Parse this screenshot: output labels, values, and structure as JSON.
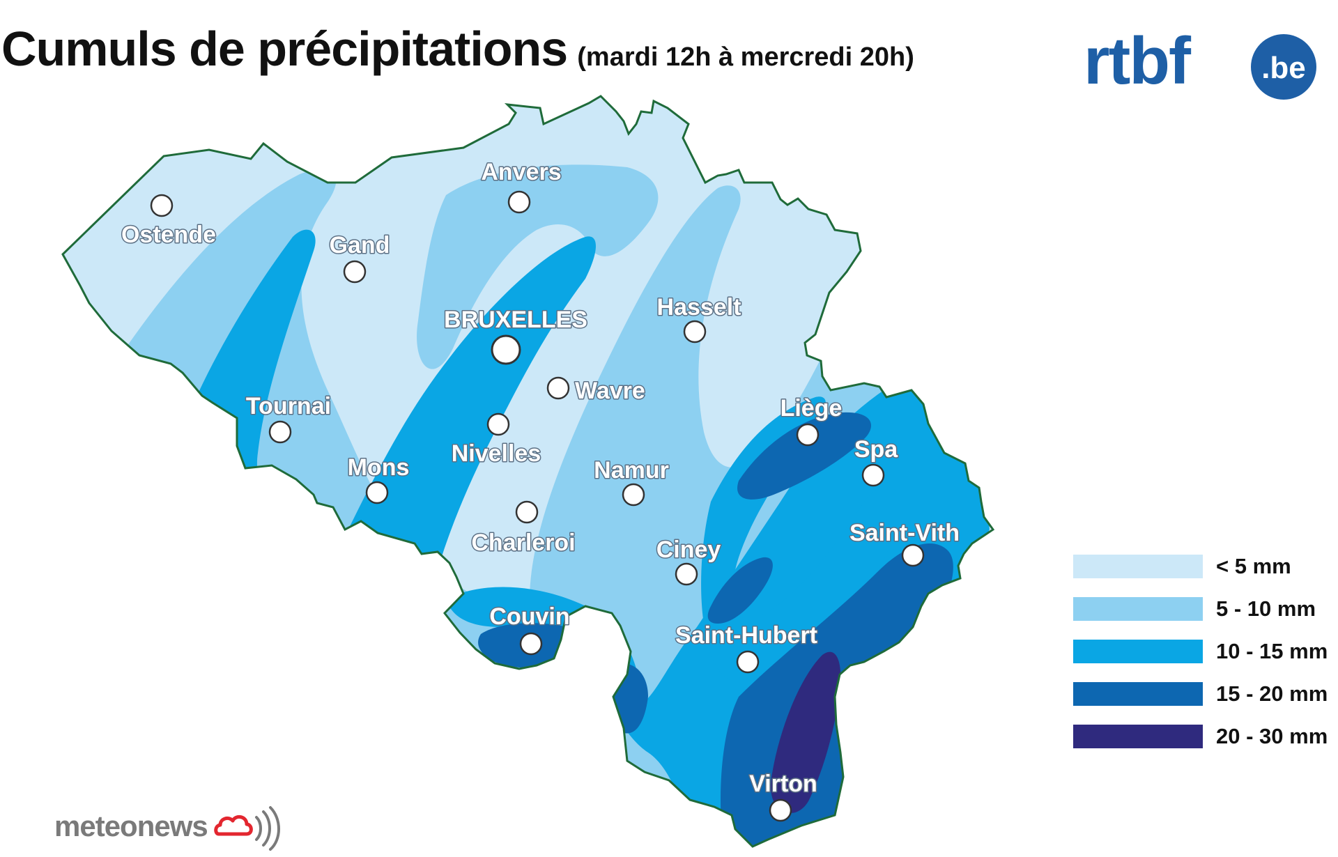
{
  "title": {
    "main": "Cumuls de précipitations",
    "period": "(mardi 12h à mercredi 20h)"
  },
  "brand": {
    "text": "rtbf",
    "badge": ".be",
    "color": "#1e5fa6"
  },
  "credit": {
    "text": "meteonews",
    "color": "#7a7a7a",
    "icon": "cloud-broadcast-icon",
    "icon_color": "#e3262f"
  },
  "cities": [
    {
      "name": "Ostende"
    },
    {
      "name": "Anvers"
    },
    {
      "name": "Gand"
    },
    {
      "name": "BRUXELLES"
    },
    {
      "name": "Hasselt"
    },
    {
      "name": "Wavre"
    },
    {
      "name": "Tournai"
    },
    {
      "name": "Liège"
    },
    {
      "name": "Nivelles"
    },
    {
      "name": "Spa"
    },
    {
      "name": "Mons"
    },
    {
      "name": "Namur"
    },
    {
      "name": "Charleroi"
    },
    {
      "name": "Saint-Vith"
    },
    {
      "name": "Ciney"
    },
    {
      "name": "Couvin"
    },
    {
      "name": "Saint-Hubert"
    },
    {
      "name": "Virton"
    }
  ],
  "legend": [
    {
      "label": "< 5 mm",
      "color": "#cce8f8"
    },
    {
      "label": "5 - 10 mm",
      "color": "#8dd0f1"
    },
    {
      "label": "10 - 15 mm",
      "color": "#0aa6e4"
    },
    {
      "label": "15 - 20 mm",
      "color": "#0d67b1"
    },
    {
      "label": "20 - 30 mm",
      "color": "#2f2a7e"
    }
  ],
  "border_color": "#1f6b3a"
}
